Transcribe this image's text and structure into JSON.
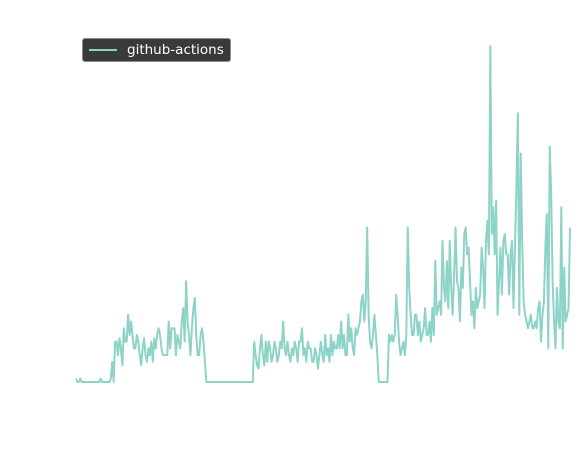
{
  "chart_data": {
    "type": "line",
    "title": "",
    "xlabel": "",
    "ylabel": "",
    "grid": false,
    "legend_position": "top-left",
    "ylim": [
      0,
      100
    ],
    "series": [
      {
        "name": "github-actions",
        "color": "#8dd3c7",
        "values": [
          1,
          0,
          0,
          1,
          0,
          0,
          0,
          0,
          0,
          0,
          0,
          0,
          0,
          0,
          0,
          0,
          0,
          1,
          0,
          0,
          0,
          0,
          0,
          0,
          1,
          6,
          0,
          12,
          12,
          8,
          13,
          10,
          5,
          16,
          12,
          12,
          20,
          14,
          18,
          14,
          10,
          10,
          14,
          12,
          8,
          5,
          10,
          13,
          8,
          6,
          10,
          8,
          12,
          6,
          13,
          10,
          14,
          16,
          14,
          10,
          8,
          8,
          8,
          8,
          18,
          10,
          16,
          16,
          16,
          8,
          14,
          12,
          10,
          18,
          22,
          12,
          30,
          18,
          14,
          8,
          16,
          22,
          25,
          14,
          8,
          8,
          14,
          16,
          12,
          6,
          0,
          0,
          0,
          0,
          0,
          0,
          0,
          0,
          0,
          0,
          0,
          0,
          0,
          0,
          0,
          0,
          0,
          0,
          0,
          0,
          0,
          0,
          0,
          0,
          0,
          0,
          0,
          0,
          0,
          0,
          0,
          0,
          0,
          12,
          8,
          5,
          4,
          10,
          14,
          8,
          5,
          12,
          6,
          12,
          10,
          6,
          8,
          12,
          10,
          6,
          8,
          12,
          10,
          18,
          10,
          8,
          12,
          8,
          6,
          10,
          8,
          12,
          10,
          6,
          12,
          12,
          16,
          8,
          10,
          6,
          12,
          10,
          10,
          6,
          6,
          10,
          8,
          4,
          8,
          12,
          8,
          6,
          14,
          8,
          10,
          6,
          14,
          8,
          12,
          10,
          10,
          14,
          10,
          18,
          10,
          14,
          8,
          8,
          20,
          12,
          16,
          10,
          8,
          16,
          14,
          16,
          18,
          24,
          26,
          18,
          24,
          46,
          20,
          12,
          10,
          14,
          20,
          14,
          8,
          0,
          0,
          0,
          0,
          0,
          0,
          0,
          14,
          12,
          14,
          12,
          14,
          26,
          20,
          12,
          8,
          10,
          12,
          8,
          14,
          46,
          28,
          20,
          14,
          14,
          20,
          20,
          14,
          18,
          12,
          14,
          16,
          22,
          14,
          14,
          18,
          12,
          22,
          14,
          36,
          20,
          22,
          24,
          20,
          42,
          28,
          24,
          36,
          22,
          42,
          28,
          20,
          32,
          46,
          30,
          28,
          18,
          34,
          28,
          44,
          46,
          38,
          40,
          30,
          20,
          24,
          16,
          28,
          22,
          24,
          26,
          40,
          34,
          22,
          42,
          48,
          38,
          100,
          44,
          52,
          38,
          54,
          20,
          30,
          40,
          26,
          42,
          44,
          38,
          38,
          26,
          38,
          42,
          22,
          40,
          58,
          80,
          20,
          68,
          42,
          24,
          20,
          18,
          16,
          18,
          20,
          16,
          16,
          18,
          16,
          22,
          24,
          12,
          20,
          24,
          40,
          50,
          10,
          70,
          56,
          30,
          18,
          10,
          28,
          18,
          16,
          52,
          10,
          34,
          18,
          20,
          22,
          46
        ],
        "line_width": 2
      }
    ]
  }
}
